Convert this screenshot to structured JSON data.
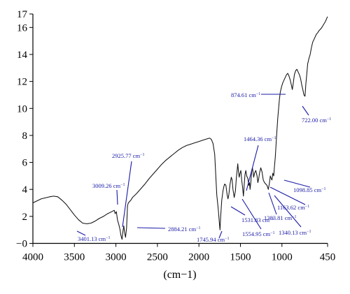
{
  "chart_data": {
    "type": "line",
    "title": "",
    "xlabel": "(cm−1)",
    "ylabel": "",
    "xlim": [
      4000,
      450
    ],
    "ylim": [
      0,
      17
    ],
    "x_ticks": [
      4000,
      3500,
      3000,
      2500,
      2000,
      1500,
      1000,
      450
    ],
    "x_tick_labels": [
      "4000",
      "3500",
      "3000",
      "2500",
      "2000",
      "1500",
      "1000",
      "450"
    ],
    "y_ticks": [
      0,
      2,
      4,
      6,
      8,
      10,
      12,
      14,
      16,
      17
    ],
    "y_tick_labels": [
      "−0",
      "2",
      "4",
      "6",
      "8",
      "10",
      "12",
      "14",
      "16",
      "17"
    ],
    "grid": false,
    "series": [
      {
        "color": "#111111",
        "points": [
          [
            4000,
            3.0
          ],
          [
            3900,
            3.3
          ],
          [
            3800,
            3.45
          ],
          [
            3750,
            3.5
          ],
          [
            3700,
            3.45
          ],
          [
            3650,
            3.2
          ],
          [
            3600,
            2.9
          ],
          [
            3550,
            2.5
          ],
          [
            3500,
            2.1
          ],
          [
            3450,
            1.75
          ],
          [
            3401,
            1.5
          ],
          [
            3350,
            1.45
          ],
          [
            3300,
            1.5
          ],
          [
            3250,
            1.65
          ],
          [
            3200,
            1.85
          ],
          [
            3150,
            2.0
          ],
          [
            3100,
            2.2
          ],
          [
            3050,
            2.35
          ],
          [
            3020,
            2.45
          ],
          [
            3009,
            2.2
          ],
          [
            2995,
            2.35
          ],
          [
            2980,
            1.7
          ],
          [
            2965,
            1.4
          ],
          [
            2950,
            1.0
          ],
          [
            2940,
            0.6
          ],
          [
            2926,
            0.3
          ],
          [
            2915,
            0.9
          ],
          [
            2905,
            1.3
          ],
          [
            2895,
            0.8
          ],
          [
            2884,
            0.45
          ],
          [
            2872,
            1.1
          ],
          [
            2860,
            2.8
          ],
          [
            2850,
            3.0
          ],
          [
            2820,
            3.2
          ],
          [
            2800,
            3.4
          ],
          [
            2750,
            3.7
          ],
          [
            2700,
            4.05
          ],
          [
            2650,
            4.4
          ],
          [
            2600,
            4.8
          ],
          [
            2550,
            5.15
          ],
          [
            2500,
            5.5
          ],
          [
            2450,
            5.85
          ],
          [
            2400,
            6.15
          ],
          [
            2350,
            6.4
          ],
          [
            2300,
            6.65
          ],
          [
            2250,
            6.9
          ],
          [
            2200,
            7.1
          ],
          [
            2150,
            7.25
          ],
          [
            2100,
            7.35
          ],
          [
            2050,
            7.45
          ],
          [
            2000,
            7.55
          ],
          [
            1950,
            7.65
          ],
          [
            1900,
            7.75
          ],
          [
            1870,
            7.8
          ],
          [
            1850,
            7.7
          ],
          [
            1830,
            7.4
          ],
          [
            1810,
            6.6
          ],
          [
            1795,
            4.8
          ],
          [
            1785,
            3.6
          ],
          [
            1775,
            3.0
          ],
          [
            1765,
            2.4
          ],
          [
            1755,
            1.6
          ],
          [
            1746,
            1.0
          ],
          [
            1738,
            2.0
          ],
          [
            1725,
            3.2
          ],
          [
            1710,
            3.9
          ],
          [
            1700,
            4.2
          ],
          [
            1690,
            4.4
          ],
          [
            1675,
            4.3
          ],
          [
            1660,
            3.6
          ],
          [
            1650,
            3.3
          ],
          [
            1640,
            3.6
          ],
          [
            1625,
            4.4
          ],
          [
            1610,
            4.9
          ],
          [
            1600,
            4.7
          ],
          [
            1590,
            4.0
          ],
          [
            1575,
            3.4
          ],
          [
            1560,
            3.9
          ],
          [
            1550,
            4.8
          ],
          [
            1540,
            5.4
          ],
          [
            1532,
            5.9
          ],
          [
            1525,
            5.4
          ],
          [
            1515,
            4.9
          ],
          [
            1505,
            5.2
          ],
          [
            1495,
            5.4
          ],
          [
            1485,
            4.7
          ],
          [
            1475,
            4.2
          ],
          [
            1464,
            3.5
          ],
          [
            1455,
            4.3
          ],
          [
            1445,
            5.1
          ],
          [
            1435,
            5.4
          ],
          [
            1425,
            5.0
          ],
          [
            1410,
            4.8
          ],
          [
            1400,
            4.3
          ],
          [
            1390,
            4.5
          ],
          [
            1384,
            4.0
          ],
          [
            1375,
            4.5
          ],
          [
            1365,
            5.3
          ],
          [
            1355,
            5.6
          ],
          [
            1340,
            4.9
          ],
          [
            1330,
            5.2
          ],
          [
            1315,
            5.4
          ],
          [
            1300,
            5.0
          ],
          [
            1290,
            4.5
          ],
          [
            1280,
            4.8
          ],
          [
            1270,
            5.2
          ],
          [
            1255,
            5.6
          ],
          [
            1240,
            5.3
          ],
          [
            1225,
            4.7
          ],
          [
            1210,
            4.5
          ],
          [
            1195,
            4.4
          ],
          [
            1180,
            4.3
          ],
          [
            1164,
            4.0
          ],
          [
            1150,
            4.5
          ],
          [
            1140,
            5.0
          ],
          [
            1130,
            4.8
          ],
          [
            1120,
            4.7
          ],
          [
            1110,
            5.2
          ],
          [
            1099,
            5.0
          ],
          [
            1090,
            5.7
          ],
          [
            1080,
            6.4
          ],
          [
            1070,
            7.4
          ],
          [
            1060,
            8.4
          ],
          [
            1050,
            9.3
          ],
          [
            1040,
            10.0
          ],
          [
            1030,
            10.7
          ],
          [
            1020,
            11.2
          ],
          [
            1005,
            11.6
          ],
          [
            990,
            11.9
          ],
          [
            975,
            12.1
          ],
          [
            960,
            12.3
          ],
          [
            945,
            12.5
          ],
          [
            930,
            12.6
          ],
          [
            915,
            12.4
          ],
          [
            900,
            12.1
          ],
          [
            885,
            11.7
          ],
          [
            875,
            11.4
          ],
          [
            865,
            11.8
          ],
          [
            850,
            12.5
          ],
          [
            835,
            12.8
          ],
          [
            820,
            12.9
          ],
          [
            805,
            12.7
          ],
          [
            790,
            12.5
          ],
          [
            775,
            12.2
          ],
          [
            760,
            11.7
          ],
          [
            745,
            11.3
          ],
          [
            735,
            11.0
          ],
          [
            722,
            10.9
          ],
          [
            712,
            11.8
          ],
          [
            700,
            12.6
          ],
          [
            690,
            13.3
          ],
          [
            675,
            13.7
          ],
          [
            660,
            14.0
          ],
          [
            645,
            14.5
          ],
          [
            630,
            14.9
          ],
          [
            615,
            15.1
          ],
          [
            600,
            15.3
          ],
          [
            585,
            15.5
          ],
          [
            570,
            15.6
          ],
          [
            555,
            15.75
          ],
          [
            540,
            15.85
          ],
          [
            525,
            15.95
          ],
          [
            510,
            16.1
          ],
          [
            495,
            16.25
          ],
          [
            480,
            16.4
          ],
          [
            465,
            16.6
          ],
          [
            455,
            16.75
          ],
          [
            450,
            16.8
          ]
        ]
      }
    ],
    "annotations": [
      {
        "text": "3401.13 cm",
        "x": 3401.13,
        "y": 1.5
      },
      {
        "text": "3009.26 cm",
        "x": 3009.26,
        "y": 2.2
      },
      {
        "text": "2925.77 cm",
        "x": 2925.77,
        "y": 0.3
      },
      {
        "text": "2884.21 cm",
        "x": 2884.21,
        "y": 0.45
      },
      {
        "text": "1745.94 cm",
        "x": 1745.94,
        "y": 1.0
      },
      {
        "text": "1531.83 cm",
        "x": 1531.83,
        "y": 5.9
      },
      {
        "text": "1464.36 cm",
        "x": 1464.36,
        "y": 3.5
      },
      {
        "text": "1554.95 cm",
        "x": 1554.95,
        "y": 3.9
      },
      {
        "text": "1383.81 cm",
        "x": 1383.81,
        "y": 4.0
      },
      {
        "text": "1340.13 cm",
        "x": 1340.13,
        "y": 4.9
      },
      {
        "text": "1163.62 cm",
        "x": 1163.62,
        "y": 4.0
      },
      {
        "text": "1098.85 cm",
        "x": 1098.85,
        "y": 5.0
      },
      {
        "text": "874.61 cm",
        "x": 874.61,
        "y": 11.4
      },
      {
        "text": "722.00 cm",
        "x": 722.0,
        "y": 10.9
      }
    ],
    "label_superscript": "−1"
  }
}
